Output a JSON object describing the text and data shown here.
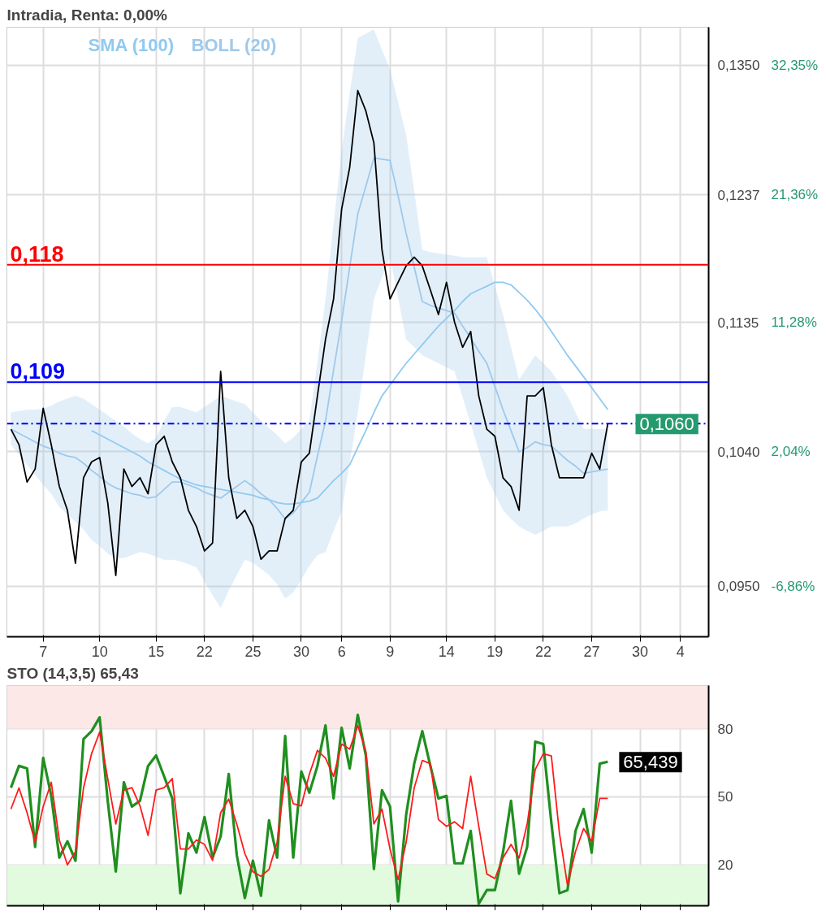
{
  "chart_data": [
    {
      "type": "line",
      "title": "Intradia, Renta: 0,00%",
      "log": "y",
      "grid": true,
      "legend": "top left",
      "categories": [
        null,
        null,
        null,
        null,
        "7",
        null,
        null,
        null,
        null,
        null,
        null,
        "10",
        null,
        null,
        null,
        null,
        null,
        null,
        "15",
        null,
        null,
        null,
        null,
        null,
        "22",
        null,
        null,
        null,
        null,
        null,
        "25",
        null,
        null,
        null,
        null,
        null,
        "30",
        null,
        null,
        null,
        null,
        "6",
        null,
        null,
        null,
        null,
        null,
        "9",
        null,
        null,
        null,
        null,
        null,
        null,
        "14",
        null,
        null,
        null,
        null,
        null,
        "19",
        null,
        null,
        null,
        null,
        null,
        "22",
        null,
        null,
        null,
        null,
        null,
        "27",
        null,
        null,
        null,
        null,
        null,
        "30",
        null,
        null,
        null,
        null,
        "4",
        null,
        null,
        null
      ],
      "ylim": [
        0.0918,
        0.1385
      ],
      "yticks": [
        {
          "value": 0.095,
          "label": "0,0950"
        },
        {
          "value": 0.104,
          "label": "0,1040"
        },
        {
          "value": 0.1135,
          "label": "0,1135"
        },
        {
          "value": 0.1237,
          "label": "0,1237"
        },
        {
          "value": 0.135,
          "label": "0,1350"
        }
      ],
      "annotations": [
        "-6,86%",
        "2,04%",
        "11,28%",
        "21,36%",
        "32,35%"
      ],
      "ref_lines": [
        {
          "axis": "y",
          "value": 0.118,
          "label": "0,118",
          "color": "#ff0000",
          "line_style": "solid"
        },
        {
          "axis": "y",
          "value": 0.109,
          "label": "0,109",
          "color": "#0000ff",
          "line_style": "solid"
        },
        {
          "axis": "y",
          "value": 0.106,
          "label": "0,1060",
          "color": "#0000ff",
          "line_style": "dashed"
        }
      ],
      "series": [
        {
          "name": "SMA (100)",
          "color": "#90caf0",
          "values": [
            null,
            null,
            null,
            null,
            null,
            null,
            null,
            null,
            null,
            null,
            0.1055,
            0.1052,
            0.1049,
            0.1046,
            0.1043,
            0.104,
            0.1037,
            0.1033,
            0.103,
            0.1027,
            0.1024,
            0.1021,
            0.1019,
            0.1017,
            0.1016,
            0.1015,
            0.1014,
            0.1013,
            0.1012,
            0.1011,
            0.101,
            0.1008,
            0.1007,
            0.1005,
            0.1004,
            0.1004,
            0.1005,
            0.1006,
            0.1008,
            0.1014,
            0.102,
            0.1025,
            0.1031,
            0.1043,
            0.1055,
            0.1068,
            0.108,
            0.1088,
            0.1096,
            0.1104,
            0.1111,
            0.1118,
            0.1125,
            0.1132,
            0.1138,
            0.1144,
            0.1151,
            0.1157,
            0.116,
            0.1163,
            0.1166,
            0.1166,
            0.1164,
            0.1158,
            0.1152,
            0.1145,
            0.1137,
            0.1128,
            0.1119,
            0.111,
            0.1102,
            0.1094,
            0.1086,
            0.1078,
            0.107,
            null,
            null,
            null,
            null,
            null,
            null,
            null,
            null,
            null,
            null,
            null,
            null
          ]
        },
        {
          "name": "BOLL (20)",
          "color": "#9ec9ec",
          "values": [
            0.1056,
            0.1053,
            0.105,
            0.1047,
            0.1044,
            0.1042,
            0.1039,
            0.1037,
            0.1036,
            0.1032,
            0.1027,
            0.1023,
            0.1018,
            0.1015,
            0.1013,
            0.1011,
            0.101,
            0.1008,
            0.1009,
            0.1014,
            0.1019,
            0.1019,
            0.1017,
            0.1015,
            0.1012,
            0.101,
            0.1008,
            0.1012,
            0.1016,
            0.102,
            0.1016,
            0.1011,
            0.1007,
            0.1001,
            0.0994,
            0.0998,
            0.1005,
            0.1012,
            0.1037,
            0.1062,
            0.1099,
            0.1136,
            0.1178,
            0.1221,
            0.1244,
            0.1268,
            0.1267,
            0.1266,
            0.1236,
            0.1205,
            0.1178,
            0.1151,
            0.1148,
            0.1146,
            0.1144,
            0.1142,
            0.1132,
            0.1123,
            0.1113,
            0.1104,
            0.1087,
            0.107,
            0.1055,
            0.104,
            0.1043,
            0.1047,
            0.1045,
            0.1044,
            0.1039,
            0.1034,
            0.103,
            0.1025,
            0.1026,
            0.1027,
            0.1028,
            null,
            null,
            null,
            null,
            null,
            null,
            null,
            null,
            null,
            null,
            null,
            null
          ],
          "upper": [
            0.1068,
            0.1069,
            0.107,
            0.107,
            0.1071,
            0.1073,
            0.1076,
            0.1078,
            0.108,
            0.1078,
            0.1074,
            0.107,
            0.1066,
            0.1062,
            0.1058,
            0.1053,
            0.1049,
            0.1046,
            0.105,
            0.1062,
            0.1072,
            0.1072,
            0.107,
            0.1068,
            0.1072,
            0.1076,
            0.108,
            0.1078,
            0.1076,
            0.1074,
            0.1068,
            0.1062,
            0.1057,
            0.1052,
            0.1046,
            0.105,
            0.1056,
            0.1062,
            0.1105,
            0.1153,
            0.1213,
            0.1274,
            0.1325,
            0.1375,
            0.1379,
            0.1383,
            0.1364,
            0.1346,
            0.1317,
            0.1288,
            0.124,
            0.1192,
            0.119,
            0.1189,
            0.1188,
            0.1187,
            0.1186,
            0.1186,
            0.1186,
            0.1186,
            0.1163,
            0.1141,
            0.1116,
            0.1092,
            0.1101,
            0.111,
            0.1104,
            0.1098,
            0.1089,
            0.108,
            0.1068,
            0.1056,
            0.1056,
            0.1056,
            0.1056,
            null,
            null,
            null,
            null,
            null,
            null,
            null,
            null,
            null,
            null,
            null,
            null
          ],
          "lower": [
            0.1045,
            0.1038,
            0.1031,
            0.1024,
            0.1017,
            0.1011,
            0.1002,
            0.0997,
            0.0992,
            0.0987,
            0.098,
            0.0976,
            0.0971,
            0.0968,
            0.0968,
            0.097,
            0.0972,
            0.0971,
            0.0969,
            0.0967,
            0.0967,
            0.0966,
            0.0964,
            0.0962,
            0.0953,
            0.0944,
            0.0936,
            0.0947,
            0.0957,
            0.0967,
            0.0965,
            0.0961,
            0.0957,
            0.0951,
            0.0942,
            0.0946,
            0.0954,
            0.0963,
            0.097,
            0.0972,
            0.0986,
            0.0999,
            0.1032,
            0.1068,
            0.111,
            0.1153,
            0.117,
            0.1186,
            0.1154,
            0.1122,
            0.1116,
            0.111,
            0.1107,
            0.1104,
            0.1101,
            0.1098,
            0.1079,
            0.106,
            0.1041,
            0.1022,
            0.1011,
            0.09998,
            0.0994,
            0.09889,
            0.0986,
            0.09834,
            0.0986,
            0.09889,
            0.09889,
            0.09889,
            0.0991,
            0.09943,
            0.0997,
            0.0999,
            0.09998,
            null,
            null,
            null,
            null,
            null,
            null,
            null,
            null,
            null,
            null,
            null,
            null
          ]
        },
        {
          "color": "#000000",
          "values": [
            0.1056,
            0.1045,
            0.1019,
            0.1028,
            0.1071,
            0.1045,
            0.1016,
            0.09998,
            0.09647,
            0.1022,
            0.1033,
            0.1036,
            0.1005,
            0.09567,
            0.1028,
            0.1016,
            0.1022,
            0.1011,
            0.1045,
            0.1051,
            0.1033,
            0.1022,
            0.09998,
            0.09889,
            0.09727,
            0.0978,
            0.1098,
            0.1022,
            0.09943,
            0.09998,
            0.09889,
            0.09673,
            0.09727,
            0.09727,
            0.09943,
            0.09998,
            0.1033,
            0.1039,
            0.108,
            0.1122,
            0.1153,
            0.1225,
            0.126,
            0.1327,
            0.1309,
            0.1281,
            0.1192,
            0.1153,
            0.1166,
            0.1179,
            0.1186,
            0.1179,
            0.116,
            0.1141,
            0.1166,
            0.1135,
            0.1116,
            0.1128,
            0.108,
            0.1056,
            0.1051,
            0.1022,
            0.1016,
            0.09998,
            0.108,
            0.108,
            0.1086,
            0.1045,
            0.1022,
            0.1022,
            0.1022,
            0.1022,
            0.1039,
            0.1028,
            0.106,
            null,
            null,
            null,
            null,
            null,
            null,
            null,
            null,
            null,
            null,
            null,
            null
          ]
        }
      ]
    },
    {
      "type": "line",
      "title": "STO (14,3,5)   65,43",
      "grid": true,
      "tick_labels": "y",
      "categories": [
        null,
        null,
        null,
        null,
        "7",
        null,
        null,
        null,
        null,
        null,
        null,
        "10",
        null,
        null,
        null,
        null,
        null,
        null,
        "15",
        null,
        null,
        null,
        null,
        null,
        "22",
        null,
        null,
        null,
        null,
        null,
        "25",
        null,
        null,
        null,
        null,
        null,
        "30",
        null,
        null,
        null,
        null,
        "6",
        null,
        null,
        null,
        null,
        null,
        "9",
        null,
        null,
        null,
        null,
        null,
        null,
        "14",
        null,
        null,
        null,
        null,
        null,
        "19",
        null,
        null,
        null,
        null,
        null,
        "22",
        null,
        null,
        null,
        null,
        null,
        "27",
        null,
        null,
        null,
        null,
        null,
        "30",
        null,
        null,
        null,
        null,
        "4",
        null,
        null,
        null
      ],
      "ylim": [
        2,
        99
      ],
      "yticks": [
        20,
        50,
        80
      ],
      "bands": [
        {
          "axis": "y",
          "from": 80,
          "to": 99,
          "color": "#fde8e8"
        },
        {
          "axis": "y",
          "from": 2,
          "to": 20,
          "color": "#e2fbdf"
        }
      ],
      "series": [
        {
          "color": "#1f8f1f",
          "values": [
            54,
            63.6,
            62.5,
            27.9,
            67.1,
            50.4,
            23.2,
            30.4,
            21.8,
            75.4,
            78.9,
            85,
            48.2,
            17.1,
            56.4,
            45.7,
            48.2,
            63.6,
            68.2,
            58.9,
            49.3,
            7.5,
            33.9,
            25.4,
            41.1,
            23.2,
            32.5,
            60,
            24.3,
            5.4,
            21.8,
            6.4,
            39.6,
            23.2,
            76.8,
            23.2,
            61.1,
            51.8,
            63.6,
            81.4,
            49.3,
            80.4,
            62.5,
            86.1,
            68.2,
            18.2,
            52.9,
            45.7,
            3.9,
            42.1,
            64.6,
            78.9,
            63.6,
            49.3,
            50.4,
            20.7,
            20.7,
            35,
            2.9,
            8.9,
            8.9,
            25.4,
            48.2,
            16.1,
            27.9,
            74.3,
            73.2,
            38.6,
            7.5,
            8.9,
            35,
            44.6,
            25.4,
            64.6,
            65.439,
            null,
            null,
            null,
            null,
            null,
            null,
            null,
            null,
            null,
            null,
            null,
            null
          ],
          "value_labels": [
            null,
            null,
            null,
            null,
            null,
            null,
            null,
            null,
            null,
            null,
            null,
            null,
            null,
            null,
            null,
            null,
            null,
            null,
            null,
            null,
            null,
            null,
            null,
            null,
            null,
            null,
            null,
            null,
            null,
            null,
            null,
            null,
            null,
            null,
            null,
            null,
            null,
            null,
            null,
            null,
            null,
            null,
            null,
            null,
            null,
            null,
            null,
            null,
            null,
            null,
            null,
            null,
            null,
            null,
            null,
            null,
            null,
            null,
            null,
            null,
            null,
            null,
            null,
            null,
            null,
            null,
            null,
            null,
            null,
            null,
            null,
            null,
            null,
            null,
            "65,439",
            null,
            null,
            null,
            null,
            null,
            null,
            null,
            null,
            null,
            null,
            null,
            null
          ]
        },
        {
          "color": "#ff1a1a",
          "values": [
            44.6,
            53.9,
            43,
            30,
            45.7,
            56.4,
            31,
            20,
            25.8,
            53.9,
            69,
            78.5,
            58,
            38,
            52.9,
            54,
            46,
            33,
            53,
            54,
            58,
            27,
            27,
            31,
            29,
            22,
            43,
            49,
            38,
            25,
            17,
            15,
            18,
            30,
            59,
            47,
            46,
            60,
            70.4,
            67,
            59,
            73.2,
            71,
            81.4,
            70,
            38,
            44.6,
            27,
            13.5,
            30,
            54,
            66,
            64.6,
            40,
            37,
            39,
            36,
            59,
            37,
            16,
            14,
            23,
            29,
            23,
            38,
            62,
            69,
            68,
            34,
            11.1,
            26,
            36,
            30.4,
            49.3,
            49.3,
            null,
            null,
            null,
            null,
            null,
            null,
            null,
            null,
            null,
            null,
            null,
            null
          ]
        }
      ]
    }
  ]
}
